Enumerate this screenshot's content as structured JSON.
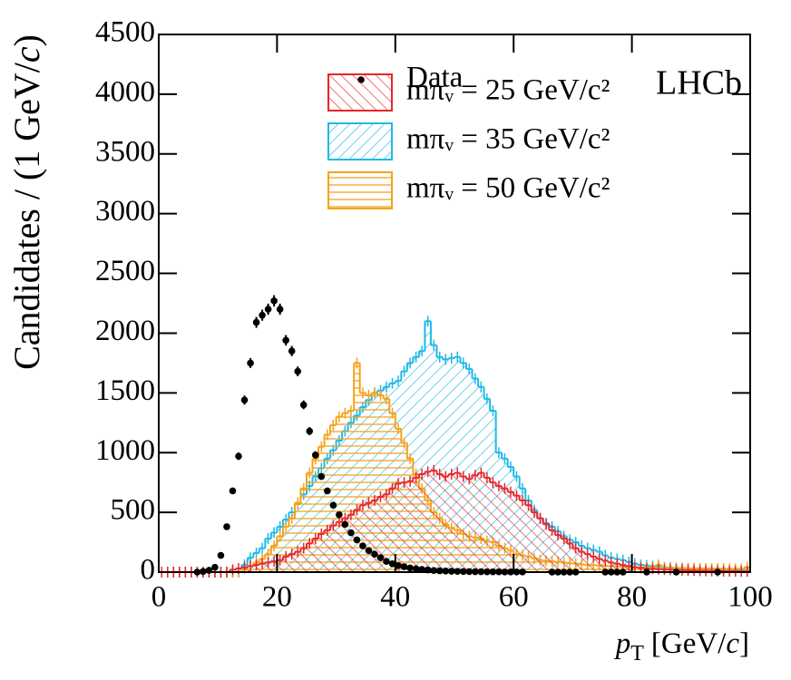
{
  "chart_data": {
    "type": "histogram",
    "annotation": "LHCb",
    "xlabel": [
      "p",
      "T",
      "[GeV/",
      "c",
      "]"
    ],
    "ylabel": [
      "Candidates / (1 GeV/",
      "c",
      ")"
    ],
    "xlim": [
      0,
      100
    ],
    "xticks": [
      0,
      20,
      40,
      60,
      80,
      100
    ],
    "ylim": [
      0,
      4500
    ],
    "yticks": [
      0,
      500,
      1000,
      1500,
      2000,
      2500,
      3000,
      3500,
      4000,
      4500
    ],
    "legend": "top-right",
    "bins": [
      0,
      1,
      2,
      3,
      4,
      5,
      6,
      7,
      8,
      9,
      10,
      11,
      12,
      13,
      14,
      15,
      16,
      17,
      18,
      19,
      20,
      21,
      22,
      23,
      24,
      25,
      26,
      27,
      28,
      29,
      30,
      31,
      32,
      33,
      34,
      35,
      36,
      37,
      38,
      39,
      40,
      41,
      42,
      43,
      44,
      45,
      46,
      47,
      48,
      49,
      50,
      51,
      52,
      53,
      54,
      55,
      56,
      57,
      58,
      59,
      60,
      61,
      62,
      63,
      64,
      65,
      66,
      67,
      68,
      69,
      70,
      71,
      72,
      73,
      74,
      75,
      76,
      77,
      78,
      79,
      80,
      81,
      82,
      83,
      84,
      85,
      86,
      87,
      88,
      89,
      90,
      91,
      92,
      93,
      94,
      95,
      96,
      97,
      98,
      99,
      100
    ],
    "series": [
      {
        "name": "Data",
        "style": "points",
        "color": "#000000",
        "values": [
          null,
          null,
          null,
          null,
          null,
          null,
          0,
          5,
          15,
          40,
          140,
          380,
          680,
          970,
          1440,
          1750,
          2090,
          2150,
          2200,
          2270,
          2200,
          1940,
          1850,
          1680,
          1400,
          1180,
          980,
          800,
          680,
          560,
          480,
          400,
          330,
          270,
          220,
          180,
          150,
          120,
          90,
          70,
          55,
          45,
          35,
          28,
          22,
          18,
          14,
          11,
          9,
          7,
          6,
          5,
          4,
          3,
          3,
          2,
          2,
          2,
          1,
          1,
          1,
          1,
          null,
          null,
          null,
          null,
          0,
          0,
          0,
          0,
          0,
          null,
          null,
          null,
          null,
          0,
          0,
          0,
          0,
          null,
          null,
          null,
          0,
          null,
          null,
          null,
          null,
          0,
          null,
          null,
          null,
          null,
          null,
          null,
          0,
          null,
          null,
          null,
          null,
          null
        ],
        "errors": [
          null,
          null,
          null,
          null,
          null,
          null,
          0,
          2,
          4,
          6,
          12,
          19,
          26,
          31,
          38,
          42,
          46,
          46,
          47,
          48,
          47,
          44,
          43,
          41,
          37,
          34,
          31,
          28,
          26,
          24,
          22,
          20,
          18,
          16,
          15,
          13,
          12,
          11,
          9,
          8,
          7,
          7,
          6,
          5,
          5,
          4,
          4,
          3,
          3,
          3,
          2,
          2,
          2,
          2,
          2,
          1,
          1,
          1,
          1,
          1,
          1,
          1,
          null,
          null,
          null,
          null,
          0,
          0,
          0,
          0,
          0,
          null,
          null,
          null,
          null,
          0,
          0,
          0,
          0,
          null,
          null,
          null,
          0,
          null,
          null,
          null,
          null,
          0,
          null,
          null,
          null,
          null,
          null,
          null,
          0,
          null,
          null,
          null,
          null,
          null
        ]
      },
      {
        "name": "mπᵥ = 25 GeV/c²",
        "style": "hatch-back",
        "color": "#e8262a",
        "values": [
          0,
          0,
          0,
          0,
          0,
          0,
          0,
          0,
          0,
          0,
          0,
          0,
          20,
          30,
          40,
          50,
          60,
          70,
          80,
          90,
          100,
          130,
          150,
          170,
          200,
          240,
          280,
          320,
          350,
          390,
          420,
          450,
          480,
          520,
          560,
          580,
          600,
          630,
          650,
          700,
          740,
          750,
          760,
          790,
          820,
          840,
          850,
          820,
          800,
          820,
          830,
          800,
          780,
          810,
          830,
          790,
          750,
          720,
          700,
          670,
          640,
          600,
          560,
          500,
          450,
          400,
          350,
          310,
          280,
          240,
          200,
          170,
          150,
          130,
          110,
          95,
          80,
          70,
          60,
          50,
          40,
          35,
          30,
          28,
          25,
          22,
          20,
          18,
          16,
          15,
          14,
          12,
          11,
          10,
          9,
          8,
          8,
          7,
          6,
          6
        ]
      },
      {
        "name": "mπᵥ = 35 GeV/c²",
        "style": "hatch-forward",
        "color": "#1fb9e8",
        "values": [
          0,
          0,
          0,
          0,
          0,
          0,
          0,
          0,
          0,
          0,
          0,
          0,
          0,
          0,
          60,
          120,
          160,
          200,
          280,
          330,
          380,
          440,
          500,
          570,
          650,
          720,
          800,
          870,
          950,
          1020,
          1100,
          1180,
          1250,
          1310,
          1380,
          1440,
          1500,
          1520,
          1550,
          1580,
          1600,
          1680,
          1750,
          1800,
          1850,
          2100,
          1900,
          1800,
          1780,
          1790,
          1800,
          1750,
          1700,
          1620,
          1550,
          1450,
          1350,
          1000,
          950,
          880,
          800,
          700,
          600,
          520,
          450,
          410,
          380,
          340,
          300,
          270,
          250,
          220,
          200,
          185,
          170,
          140,
          120,
          110,
          100,
          85,
          70,
          60,
          55,
          50,
          45,
          40,
          38,
          35,
          33,
          30,
          30,
          28,
          25,
          22,
          20,
          20,
          18,
          16,
          15,
          40
        ]
      },
      {
        "name": "mπᵥ = 50 GeV/c²",
        "style": "hatch-horizontal",
        "color": "#f5a21b",
        "values": [
          0,
          0,
          0,
          0,
          0,
          0,
          0,
          0,
          0,
          0,
          0,
          0,
          0,
          0,
          30,
          50,
          80,
          110,
          150,
          220,
          300,
          380,
          450,
          580,
          700,
          830,
          950,
          1050,
          1150,
          1230,
          1300,
          1330,
          1350,
          1750,
          1500,
          1480,
          1500,
          1480,
          1450,
          1330,
          1200,
          1080,
          950,
          820,
          700,
          600,
          500,
          450,
          400,
          370,
          350,
          320,
          300,
          290,
          280,
          260,
          250,
          220,
          200,
          180,
          150,
          140,
          130,
          115,
          100,
          95,
          90,
          85,
          80,
          75,
          70,
          65,
          60,
          58,
          55,
          52,
          50,
          48,
          45,
          44,
          42,
          40,
          40,
          38,
          60,
          36,
          35,
          34,
          33,
          32,
          32,
          31,
          30,
          30,
          30,
          29,
          28,
          28,
          27,
          40
        ]
      }
    ]
  }
}
